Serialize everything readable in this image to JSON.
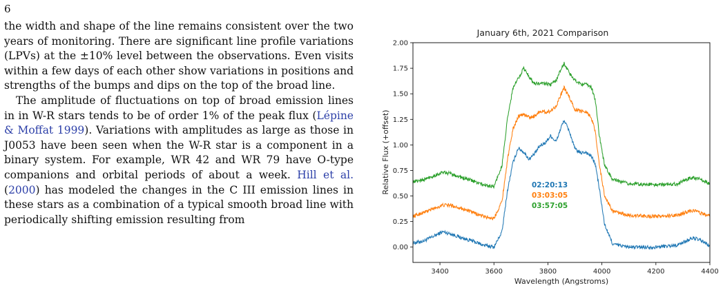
{
  "page": {
    "number": "6"
  },
  "text": {
    "p1": "the width and shape of the line remains consistent over the two years of monitoring. There are significant line profile variations (LPVs) at the ±10% level between the observations. Even visits within a few days of each other show variations in positions and strengths of the bumps and dips on the top of the broad line.",
    "p2_a": "The amplitude of fluctuations on top of broad emission lines in in W-R stars tends to be of order 1% of the peak flux (",
    "p2_cite1": "Lépine & Moffat 1999",
    "p2_b": "). Variations with amplitudes as large as those in J0053 have been seen when the W-R star is a component in a binary system. For example, WR 42 and WR 79 have O-type companions and orbital periods of about a week. ",
    "p2_cite2a": "Hill et al.",
    "p2_cite2b_open": " (",
    "p2_cite2b": "2000",
    "p2_cite2b_close": ")",
    "p2_c": " has modeled the changes in the C III emission lines in these stars as a combination of a typical smooth broad line with periodically shifting emission resulting from"
  },
  "colors": {
    "blue": "#1f77b4",
    "orange": "#ff7f0e",
    "green": "#2ca02c",
    "citation": "#2c3fa8"
  },
  "chart_data": {
    "type": "line",
    "title": "January 6th, 2021 Comparison",
    "xlabel": "Wavelength (Angstroms)",
    "ylabel": "Relative Flux (+offset)",
    "xlim": [
      3300,
      4400
    ],
    "ylim": [
      -0.15,
      2.0
    ],
    "xticks": [
      3400,
      3600,
      3800,
      4000,
      4200,
      4400
    ],
    "yticks": [
      0.0,
      0.25,
      0.5,
      0.75,
      1.0,
      1.25,
      1.5,
      1.75,
      2.0
    ],
    "ytick_labels": [
      "0.00",
      "0.25",
      "0.50",
      "0.75",
      "1.00",
      "1.25",
      "1.50",
      "1.75",
      "2.00"
    ],
    "grid": false,
    "legend_position": "center",
    "series": [
      {
        "name": "02:20:13",
        "color": "#1f77b4",
        "x": [
          3300,
          3340,
          3380,
          3410,
          3440,
          3480,
          3520,
          3560,
          3600,
          3630,
          3650,
          3670,
          3690,
          3710,
          3730,
          3750,
          3770,
          3790,
          3810,
          3830,
          3850,
          3860,
          3880,
          3900,
          3920,
          3940,
          3960,
          3975,
          3990,
          4010,
          4040,
          4100,
          4200,
          4280,
          4320,
          4340,
          4370,
          4400
        ],
        "y": [
          0.04,
          0.06,
          0.11,
          0.15,
          0.13,
          0.09,
          0.06,
          0.02,
          0.0,
          0.15,
          0.55,
          0.82,
          0.97,
          0.93,
          0.86,
          0.91,
          0.99,
          1.02,
          1.09,
          1.03,
          1.18,
          1.24,
          1.13,
          0.96,
          0.92,
          0.93,
          0.89,
          0.82,
          0.58,
          0.22,
          0.03,
          0.0,
          0.0,
          0.02,
          0.07,
          0.09,
          0.06,
          0.01
        ]
      },
      {
        "name": "03:03:05",
        "color": "#ff7f0e",
        "x": [
          3300,
          3340,
          3380,
          3410,
          3440,
          3480,
          3520,
          3560,
          3600,
          3630,
          3650,
          3670,
          3690,
          3710,
          3730,
          3750,
          3770,
          3790,
          3810,
          3830,
          3850,
          3860,
          3880,
          3900,
          3920,
          3940,
          3960,
          3975,
          3990,
          4010,
          4040,
          4100,
          4200,
          4280,
          4320,
          4340,
          4370,
          4400
        ],
        "y": [
          0.3,
          0.34,
          0.38,
          0.41,
          0.41,
          0.38,
          0.34,
          0.3,
          0.28,
          0.45,
          0.85,
          1.15,
          1.28,
          1.3,
          1.27,
          1.28,
          1.33,
          1.32,
          1.33,
          1.38,
          1.5,
          1.56,
          1.46,
          1.35,
          1.33,
          1.33,
          1.27,
          1.14,
          0.82,
          0.5,
          0.35,
          0.31,
          0.3,
          0.31,
          0.35,
          0.36,
          0.33,
          0.3
        ]
      },
      {
        "name": "03:57:05",
        "color": "#2ca02c",
        "x": [
          3300,
          3340,
          3380,
          3410,
          3440,
          3480,
          3520,
          3560,
          3600,
          3630,
          3650,
          3670,
          3690,
          3710,
          3730,
          3750,
          3770,
          3790,
          3810,
          3830,
          3850,
          3860,
          3880,
          3900,
          3920,
          3940,
          3960,
          3975,
          3990,
          4010,
          4040,
          4100,
          4200,
          4280,
          4320,
          4340,
          4370,
          4400
        ],
        "y": [
          0.64,
          0.66,
          0.7,
          0.73,
          0.72,
          0.68,
          0.65,
          0.61,
          0.59,
          0.8,
          1.25,
          1.55,
          1.65,
          1.75,
          1.67,
          1.6,
          1.6,
          1.6,
          1.59,
          1.63,
          1.75,
          1.8,
          1.7,
          1.63,
          1.6,
          1.59,
          1.57,
          1.45,
          1.1,
          0.8,
          0.66,
          0.62,
          0.61,
          0.62,
          0.67,
          0.68,
          0.66,
          0.62
        ]
      }
    ]
  }
}
